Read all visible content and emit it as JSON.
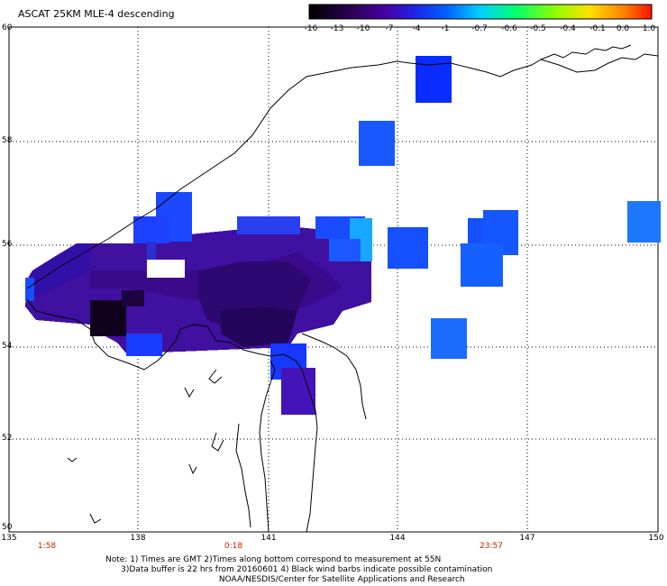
{
  "title": "ASCAT 25KM MLE-4 descending",
  "colorbar": {
    "labels": [
      "-16",
      "-13",
      "-10",
      "-7",
      "-4",
      "-1",
      "-0.7",
      "-0.6",
      "-0.5",
      "-0.4",
      "-0.1",
      "0.0",
      "1.0"
    ],
    "colors": [
      "#000000",
      "#2a0040",
      "#4a0090",
      "#3a10c0",
      "#1030ff",
      "#0080ff",
      "#00d0ff",
      "#00ff80",
      "#80ff00",
      "#ffe000",
      "#ff8000",
      "#ff2000"
    ]
  },
  "map": {
    "lat_labels": [
      "60",
      "58",
      "56",
      "54",
      "52",
      "50"
    ],
    "lon_labels": [
      "135",
      "138",
      "141",
      "144",
      "147",
      "150"
    ],
    "time_labels": [
      "1:58",
      "0:18",
      "23:57"
    ]
  },
  "note": {
    "line1": "Note: 1) Times are GMT 2)Times along bottom correspond to measurement at 55N",
    "line2": "      3)Data buffer is 22 hrs from 20160601 4) Black wind barbs indicate possible contamination",
    "line3": "                                            NOAA/NESDIS/Center for Satellite Applications and Research"
  }
}
